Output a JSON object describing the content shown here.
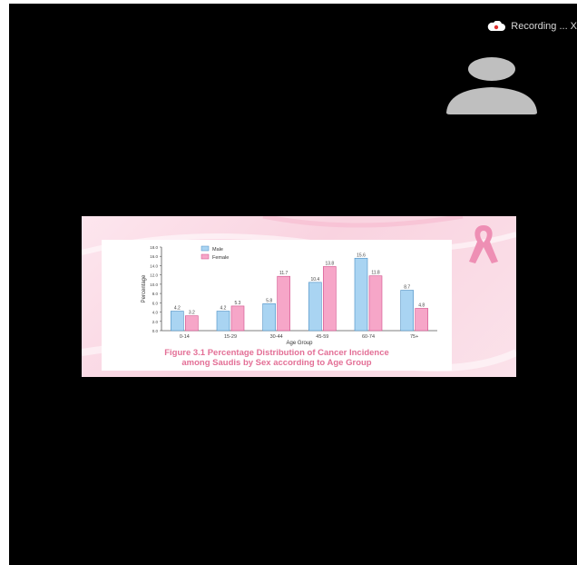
{
  "recording": {
    "label": "Recording ...",
    "close_glyph": "X",
    "icon": "cloud-icon"
  },
  "participant": {
    "icon": "avatar-icon",
    "avatar_color": "#bfbfbf"
  },
  "slide": {
    "caption_line1": "Figure 3.1 Percentage Distribution of Cancer Incidence",
    "caption_line2": "among Saudis by Sex according to Age Group",
    "ribbon_icon": "pink-ribbon-icon"
  },
  "chart_data": {
    "type": "bar",
    "categories": [
      "0-14",
      "15-29",
      "30-44",
      "45-59",
      "60-74",
      "75+"
    ],
    "series": [
      {
        "name": "Male",
        "values": [
          4.2,
          4.2,
          5.8,
          10.4,
          15.6,
          8.7
        ],
        "color": "#a9d4f2",
        "edge": "#4a8ec4"
      },
      {
        "name": "Female",
        "values": [
          3.2,
          5.3,
          11.7,
          13.8,
          11.8,
          4.8
        ],
        "color": "#f6a6c8",
        "edge": "#d14d8a"
      }
    ],
    "xlabel": "Age Group",
    "ylabel": "Percentage",
    "ylim": [
      0,
      18
    ],
    "yticks": [
      "0.0",
      "2.0",
      "4.0",
      "6.0",
      "8.0",
      "10.0",
      "12.0",
      "14.0",
      "16.0",
      "18.0"
    ],
    "legend_position": "top-left",
    "grid": false
  }
}
